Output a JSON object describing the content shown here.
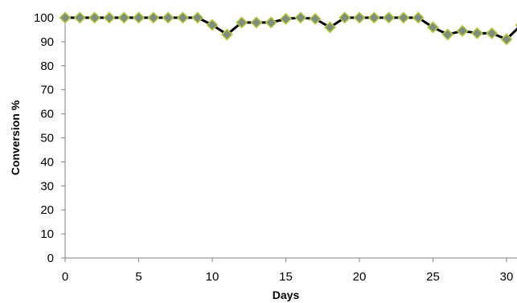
{
  "chart_data": {
    "type": "line",
    "title": "",
    "xlabel": "Days",
    "ylabel": "Conversion %",
    "xlim": [
      0,
      30
    ],
    "ylim": [
      0,
      100
    ],
    "x_ticks": [
      0,
      5,
      10,
      15,
      20,
      25,
      30
    ],
    "y_ticks": [
      0,
      10,
      20,
      30,
      40,
      50,
      60,
      70,
      80,
      90,
      100
    ],
    "grid": false,
    "legend": "none",
    "series": [
      {
        "line_color": "#000000",
        "marker": "diamond",
        "marker_fill": "#7f8f7f",
        "marker_edge": "#b8cc3a",
        "x": [
          0,
          1,
          2,
          3,
          4,
          5,
          6,
          7,
          8,
          9,
          10,
          11,
          12,
          13,
          14,
          15,
          16,
          17,
          18,
          19,
          20,
          21,
          22,
          23,
          24,
          25,
          26,
          27,
          28,
          29,
          30,
          31
        ],
        "y": [
          100,
          100,
          100,
          100,
          100,
          100,
          100,
          100,
          100,
          100,
          97,
          93,
          98,
          98,
          98,
          99.5,
          100,
          99.5,
          96,
          100,
          100,
          100,
          100,
          100,
          100,
          96,
          93,
          94.5,
          93.5,
          93.5,
          91,
          97
        ]
      }
    ]
  }
}
